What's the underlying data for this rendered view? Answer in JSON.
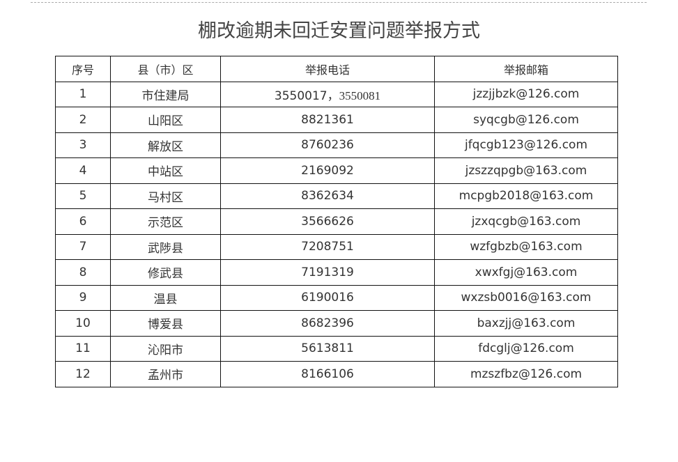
{
  "title": "棚改逾期未回迁安置问题举报方式",
  "headers": [
    "序号",
    "县（市）区",
    "举报电话",
    "举报邮箱"
  ],
  "rows": [
    {
      "no": "1",
      "area": "市住建局",
      "phone": "3550017，",
      "phone2": "3550081",
      "email": "jzzjjbzk@126.com"
    },
    {
      "no": "2",
      "area": "山阳区",
      "phone": "8821361",
      "email": "syqcgb@126.com"
    },
    {
      "no": "3",
      "area": "解放区",
      "phone": "8760236",
      "email": "jfqcgb123@126.com"
    },
    {
      "no": "4",
      "area": "中站区",
      "phone": "2169092",
      "email": "jzszzqpgb@163.com"
    },
    {
      "no": "5",
      "area": "马村区",
      "phone": "8362634",
      "email": "mcpgb2018@163.com"
    },
    {
      "no": "6",
      "area": "示范区",
      "phone": "3566626",
      "email": "jzxqcgb@163.com"
    },
    {
      "no": "7",
      "area": "武陟县",
      "phone": "7208751",
      "email": "wzfgbzb@163.com"
    },
    {
      "no": "8",
      "area": "修武县",
      "phone": "7191319",
      "email": "xwxfgj@163.com"
    },
    {
      "no": "9",
      "area": "温县",
      "phone": "6190016",
      "email": "wxzsb0016@163.com"
    },
    {
      "no": "10",
      "area": "博爱县",
      "phone": "8682396",
      "email": "baxzjj@163.com"
    },
    {
      "no": "11",
      "area": "沁阳市",
      "phone": "5613811",
      "email": "fdcglj@126.com"
    },
    {
      "no": "12",
      "area": "孟州市",
      "phone": "8166106",
      "email": "mzszfbz@126.com"
    }
  ]
}
